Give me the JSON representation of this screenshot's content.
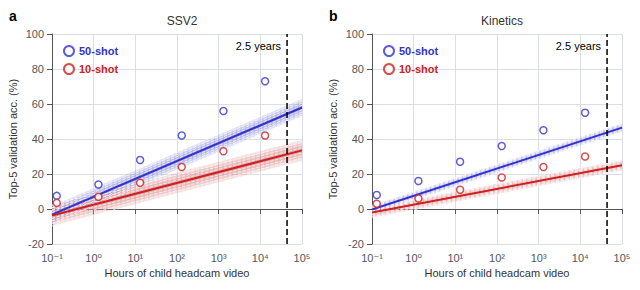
{
  "chart_data": [
    {
      "type": "scatter",
      "title": "SSV2",
      "xlabel": "Hours of child headcam video",
      "ylabel": "Top-5 validation acc. (%)",
      "annotations": [
        {
          "text": "a"
        }
      ],
      "vlines": [
        {
          "x": 43800,
          "label": "2.5 years",
          "color": "#000000",
          "line_style": "dashed"
        }
      ],
      "xlim": [
        0.1,
        100000
      ],
      "ylim": [
        -20,
        100
      ],
      "xticks": [
        {
          "value": 0.1,
          "label": "10⁻¹"
        },
        {
          "value": 1,
          "label": "10⁰"
        },
        {
          "value": 10,
          "label": "10¹"
        },
        {
          "value": 100,
          "label": "10²"
        },
        {
          "value": 1000,
          "label": "10³"
        },
        {
          "value": 10000,
          "label": "10⁴"
        },
        {
          "value": 100000,
          "label": "10⁵"
        }
      ],
      "yticks": [
        -20,
        0,
        20,
        40,
        60,
        80,
        100
      ],
      "log": "x",
      "grid": true,
      "legend": "upper left",
      "series": [
        {
          "type": "band",
          "color": "#8888dd",
          "x": [
            0.1,
            100000
          ],
          "lower": [
            -8.2,
            53
          ],
          "upper": [
            1.8,
            63
          ]
        },
        {
          "type": "band",
          "color": "#dd8888",
          "x": [
            0.1,
            100000
          ],
          "lower": [
            -9.7,
            27.5
          ],
          "upper": [
            2.3,
            39.5
          ]
        },
        {
          "type": "band",
          "color": "#8888dd",
          "x": [
            0.1,
            100000
          ],
          "lower": [
            -6.95,
            54.25
          ],
          "upper": [
            0.55,
            61.75
          ]
        },
        {
          "type": "band",
          "color": "#dd8888",
          "x": [
            0.1,
            100000
          ],
          "lower": [
            -8.2,
            29
          ],
          "upper": [
            0.8,
            38
          ]
        },
        {
          "type": "band",
          "color": "#8888dd",
          "x": [
            0.1,
            100000
          ],
          "lower": [
            -5.7,
            55.5
          ],
          "upper": [
            -0.7,
            60.5
          ]
        },
        {
          "type": "band",
          "color": "#dd8888",
          "x": [
            0.1,
            100000
          ],
          "lower": [
            -6.7,
            30.5
          ],
          "upper": [
            -0.7,
            36.5
          ]
        },
        {
          "type": "band",
          "color": "#8888dd",
          "x": [
            0.1,
            100000
          ],
          "lower": [
            -4.45,
            56.75
          ],
          "upper": [
            -1.95,
            59.25
          ]
        },
        {
          "type": "band",
          "color": "#dd8888",
          "x": [
            0.1,
            100000
          ],
          "lower": [
            -5.2,
            32
          ],
          "upper": [
            -2.2,
            35
          ]
        },
        {
          "type": "line",
          "color": "#3333cc",
          "x": [
            0.1,
            100000
          ],
          "values": [
            -3.2,
            58
          ]
        },
        {
          "type": "line",
          "color": "#cc2222",
          "x": [
            0.1,
            100000
          ],
          "values": [
            -3.7,
            33.5
          ]
        },
        {
          "type": "scatter",
          "name": "50-shot",
          "color": "#3333cc",
          "marker": "circle",
          "x": [
            0.13,
            1.3,
            13,
            130,
            1300,
            13000
          ],
          "values": [
            7.5,
            14,
            28,
            42,
            56,
            73
          ]
        },
        {
          "type": "scatter",
          "name": "10-shot",
          "color": "#cc2222",
          "marker": "circle",
          "x": [
            0.13,
            1.3,
            13,
            130,
            1300,
            13000
          ],
          "values": [
            3.5,
            7,
            15,
            24,
            33,
            42
          ]
        }
      ]
    },
    {
      "type": "scatter",
      "title": "Kinetics",
      "xlabel": "Hours of child headcam video",
      "ylabel": "Top-5 validation acc. (%)",
      "annotations": [
        {
          "text": "b"
        }
      ],
      "vlines": [
        {
          "x": 43800,
          "label": "2.5 years",
          "color": "#000000",
          "line_style": "dashed"
        }
      ],
      "xlim": [
        0.1,
        100000
      ],
      "ylim": [
        -20,
        100
      ],
      "xticks": [
        {
          "value": 0.1,
          "label": "10⁻¹"
        },
        {
          "value": 1,
          "label": "10⁰"
        },
        {
          "value": 10,
          "label": "10¹"
        },
        {
          "value": 100,
          "label": "10²"
        },
        {
          "value": 1000,
          "label": "10³"
        },
        {
          "value": 10000,
          "label": "10⁴"
        },
        {
          "value": 100000,
          "label": "10⁵"
        }
      ],
      "yticks": [
        -20,
        0,
        20,
        40,
        60,
        80,
        100
      ],
      "log": "x",
      "grid": true,
      "legend": "upper left",
      "series": [
        {
          "type": "band",
          "color": "#8888dd",
          "x": [
            0.1,
            100000
          ],
          "lower": [
            -2.8,
            44
          ],
          "upper": [
            2.2,
            49
          ]
        },
        {
          "type": "band",
          "color": "#dd8888",
          "x": [
            0.1,
            100000
          ],
          "lower": [
            -5,
            22
          ],
          "upper": [
            1,
            28
          ]
        },
        {
          "type": "band",
          "color": "#8888dd",
          "x": [
            0.1,
            100000
          ],
          "lower": [
            -2.175,
            44.625
          ],
          "upper": [
            1.575,
            48.375
          ]
        },
        {
          "type": "band",
          "color": "#dd8888",
          "x": [
            0.1,
            100000
          ],
          "lower": [
            -4.25,
            22.75
          ],
          "upper": [
            0.25,
            27.25
          ]
        },
        {
          "type": "band",
          "color": "#8888dd",
          "x": [
            0.1,
            100000
          ],
          "lower": [
            -1.55,
            45.25
          ],
          "upper": [
            0.95,
            47.75
          ]
        },
        {
          "type": "band",
          "color": "#dd8888",
          "x": [
            0.1,
            100000
          ],
          "lower": [
            -3.5,
            23.5
          ],
          "upper": [
            -0.5,
            26.5
          ]
        },
        {
          "type": "band",
          "color": "#8888dd",
          "x": [
            0.1,
            100000
          ],
          "lower": [
            -0.925,
            45.875
          ],
          "upper": [
            0.325,
            47.125
          ]
        },
        {
          "type": "band",
          "color": "#dd8888",
          "x": [
            0.1,
            100000
          ],
          "lower": [
            -2.75,
            24.25
          ],
          "upper": [
            -1.25,
            25.75
          ]
        },
        {
          "type": "line",
          "color": "#3333cc",
          "x": [
            0.1,
            100000
          ],
          "values": [
            -0.3,
            46.5
          ]
        },
        {
          "type": "line",
          "color": "#cc2222",
          "x": [
            0.1,
            100000
          ],
          "values": [
            -2,
            25
          ]
        },
        {
          "type": "scatter",
          "name": "50-shot",
          "color": "#3333cc",
          "marker": "circle",
          "x": [
            0.13,
            1.3,
            13,
            130,
            1300,
            13000
          ],
          "values": [
            8,
            16,
            27,
            36,
            45,
            55
          ]
        },
        {
          "type": "scatter",
          "name": "10-shot",
          "color": "#cc2222",
          "marker": "circle",
          "x": [
            0.13,
            1.3,
            13,
            130,
            1300,
            13000
          ],
          "values": [
            3,
            6,
            11,
            18,
            24,
            30
          ]
        }
      ]
    }
  ]
}
